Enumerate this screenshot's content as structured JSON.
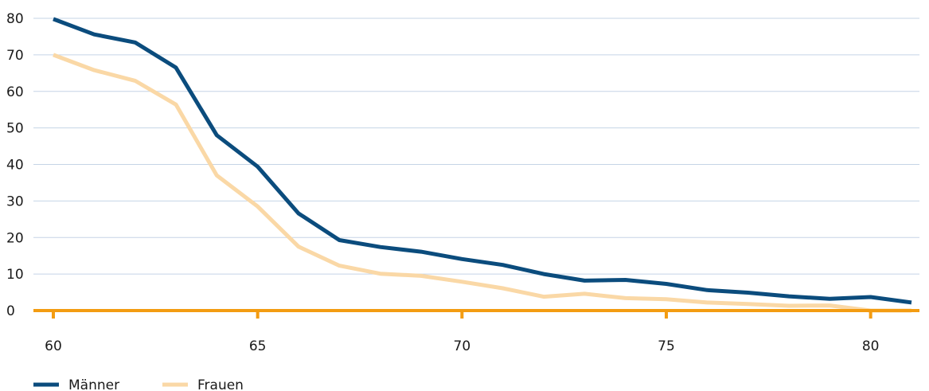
{
  "chart_data": {
    "type": "line",
    "title": "",
    "xlabel": "",
    "ylabel": "",
    "x": [
      60,
      61,
      62,
      63,
      64,
      65,
      66,
      67,
      68,
      69,
      70,
      71,
      72,
      73,
      74,
      75,
      76,
      77,
      78,
      79,
      80,
      81
    ],
    "xlim": [
      60,
      81
    ],
    "ylim": [
      0,
      80
    ],
    "x_ticks": [
      "60",
      "65",
      "70",
      "75",
      "80"
    ],
    "y_ticks": [
      "0",
      "10",
      "20",
      "30",
      "40",
      "50",
      "60",
      "70",
      "80"
    ],
    "grid": true,
    "legend_position": "bottom-left",
    "series": [
      {
        "name": "Männer",
        "color": "#0b4c7d",
        "values": [
          79.8,
          75.6,
          73.4,
          66.5,
          48.0,
          39.4,
          26.6,
          19.3,
          17.4,
          16.1,
          14.1,
          12.5,
          10.0,
          8.2,
          8.4,
          7.3,
          5.6,
          4.9,
          3.9,
          3.2,
          3.7,
          2.2
        ]
      },
      {
        "name": "Frauen",
        "color": "#fad8a6",
        "values": [
          70.0,
          65.8,
          62.9,
          56.4,
          37.0,
          28.5,
          17.5,
          12.3,
          10.1,
          9.5,
          7.9,
          6.1,
          3.8,
          4.6,
          3.4,
          3.1,
          2.2,
          1.8,
          1.3,
          1.4,
          0,
          0
        ]
      }
    ]
  },
  "colors": {
    "axis": "#f39c12",
    "grid": "#c5d4e6"
  }
}
